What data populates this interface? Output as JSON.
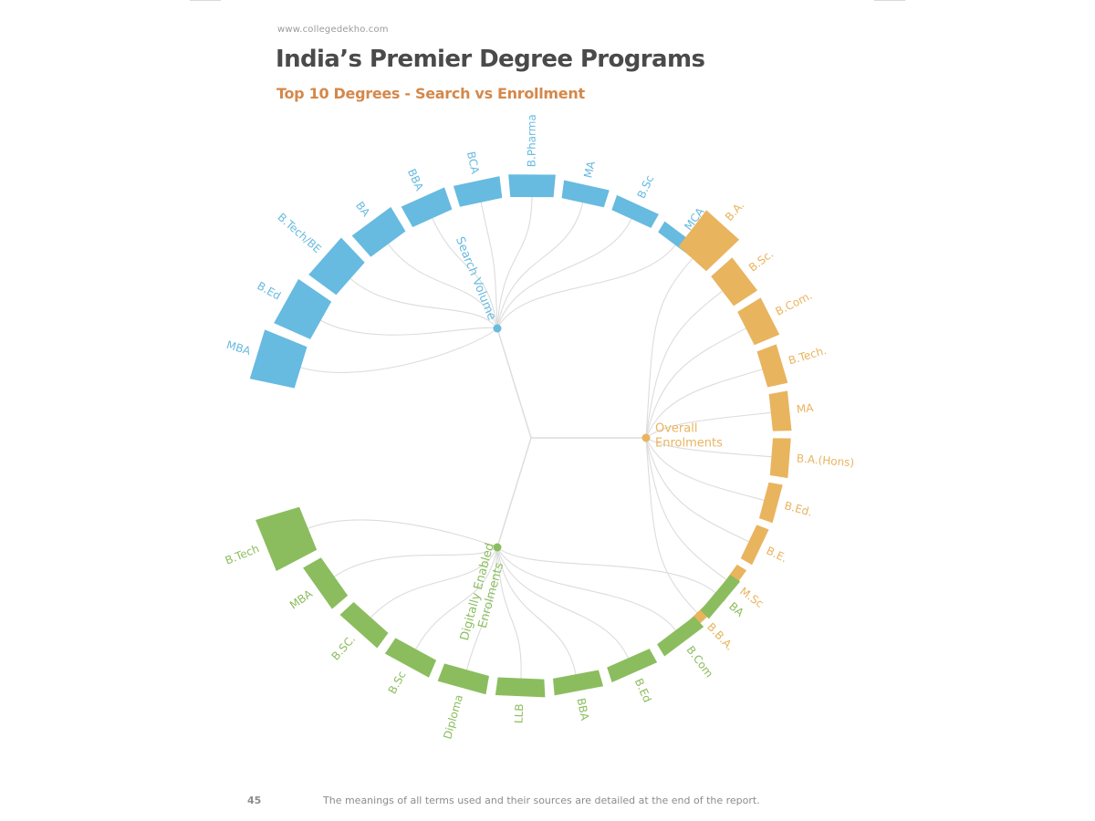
{
  "header": {
    "site": "www.collegedekho.com",
    "title": "India’s Premier Degree Programs",
    "subtitle": "Top 10 Degrees - Search vs Enrollment"
  },
  "footer": {
    "page_number": "45",
    "note": "The meanings of all terms used and their sources are detailed at the end of the report."
  },
  "colors": {
    "search": "#67bae0",
    "enrol": "#e9b45e",
    "digital": "#8bbd5e",
    "link": "#dcdcdc"
  },
  "chart_data": {
    "type": "radial-bar-dendrogram",
    "title": "Top 10 Degrees - Search vs Enrollment",
    "groups": [
      {
        "name": "Search Volume",
        "color": "#67bae0",
        "categories": [
          "MBA",
          "B.Ed",
          "B.Tech/BE",
          "BA",
          "BBA",
          "BCA",
          "B.Pharma",
          "MA",
          "B.Sc",
          "MCA"
        ],
        "values": [
          100,
          85,
          70,
          55,
          42,
          38,
          40,
          28,
          22,
          14
        ]
      },
      {
        "name": "Overall Enrolments",
        "color": "#e9b45e",
        "categories": [
          "B.A.",
          "B.Sc.",
          "B.Com.",
          "B.Tech.",
          "MA",
          "B.A.(Hons)",
          "B.Ed.",
          "B.E.",
          "M.Sc",
          "B.B.A."
        ],
        "values": [
          100,
          55,
          52,
          35,
          30,
          28,
          18,
          15,
          10,
          7
        ]
      },
      {
        "name": "Digitally Enabled Enrolments",
        "color": "#8bbd5e",
        "categories": [
          "BA",
          "B.Com",
          "B.Ed",
          "BBA",
          "LLB",
          "Diploma",
          "B.Sc",
          "B.SC.",
          "MBA",
          "B.Tech"
        ],
        "values": [
          12,
          18,
          22,
          25,
          28,
          30,
          30,
          30,
          35,
          100
        ]
      }
    ]
  }
}
